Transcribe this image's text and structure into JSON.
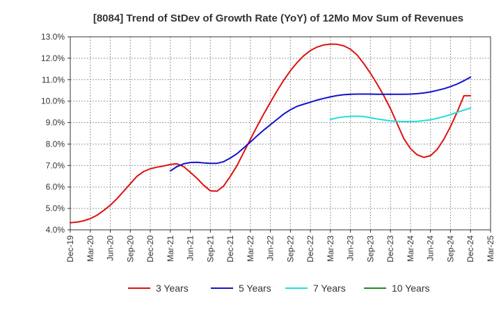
{
  "chart_data": {
    "type": "line",
    "title": "[8084]  Trend of StDev of Growth Rate (YoY) of 12Mo Mov Sum of Revenues",
    "xlabel": "",
    "ylabel": "",
    "ylim": [
      4.0,
      13.0
    ],
    "y_ticks": [
      "4.0%",
      "5.0%",
      "6.0%",
      "7.0%",
      "8.0%",
      "9.0%",
      "10.0%",
      "11.0%",
      "12.0%",
      "13.0%"
    ],
    "x_tick_labels": [
      "Dec-19",
      "Mar-20",
      "Jun-20",
      "Sep-20",
      "Dec-20",
      "Mar-21",
      "Jun-21",
      "Sep-21",
      "Dec-21",
      "Mar-22",
      "Jun-22",
      "Sep-22",
      "Dec-22",
      "Mar-23",
      "Jun-23",
      "Sep-23",
      "Dec-23",
      "Mar-24",
      "Jun-24",
      "Sep-24",
      "Dec-24",
      "Mar-25"
    ],
    "grid": true,
    "legend_position": "bottom",
    "series": [
      {
        "name": "3 Years",
        "color": "#dd1111",
        "x": [
          "Dec-19",
          "Jan-20",
          "Feb-20",
          "Mar-20",
          "Apr-20",
          "May-20",
          "Jun-20",
          "Jul-20",
          "Aug-20",
          "Sep-20",
          "Oct-20",
          "Nov-20",
          "Dec-20",
          "Jan-21",
          "Feb-21",
          "Mar-21",
          "Apr-21",
          "May-21",
          "Jun-21",
          "Jul-21",
          "Aug-21",
          "Sep-21",
          "Oct-21",
          "Nov-21",
          "Dec-21",
          "Jan-22",
          "Feb-22",
          "Mar-22",
          "Apr-22",
          "May-22",
          "Jun-22",
          "Jul-22",
          "Aug-22",
          "Sep-22",
          "Oct-22",
          "Nov-22",
          "Dec-22",
          "Jan-23",
          "Feb-23",
          "Mar-23",
          "Apr-23",
          "May-23",
          "Jun-23",
          "Jul-23",
          "Aug-23",
          "Sep-23",
          "Oct-23",
          "Nov-23",
          "Dec-23",
          "Jan-24",
          "Feb-24",
          "Mar-24",
          "Apr-24",
          "May-24",
          "Jun-24",
          "Jul-24",
          "Aug-24",
          "Sep-24",
          "Oct-24",
          "Nov-24",
          "Dec-24"
        ],
        "values": [
          4.33,
          4.36,
          4.42,
          4.52,
          4.68,
          4.9,
          5.15,
          5.45,
          5.8,
          6.15,
          6.5,
          6.72,
          6.85,
          6.92,
          6.98,
          7.05,
          7.08,
          6.95,
          6.68,
          6.4,
          6.08,
          5.82,
          5.8,
          6.05,
          6.5,
          7.0,
          7.62,
          8.22,
          8.82,
          9.4,
          9.95,
          10.48,
          10.98,
          11.42,
          11.8,
          12.12,
          12.36,
          12.52,
          12.62,
          12.66,
          12.65,
          12.58,
          12.42,
          12.15,
          11.75,
          11.3,
          10.8,
          10.25,
          9.65,
          8.95,
          8.25,
          7.78,
          7.5,
          7.38,
          7.46,
          7.75,
          8.22,
          8.82,
          9.5,
          10.25,
          10.25
        ]
      },
      {
        "name": "5 Years",
        "color": "#1111cc",
        "x": [
          "Mar-21",
          "Apr-21",
          "May-21",
          "Jun-21",
          "Jul-21",
          "Aug-21",
          "Sep-21",
          "Oct-21",
          "Nov-21",
          "Dec-21",
          "Jan-22",
          "Feb-22",
          "Mar-22",
          "Apr-22",
          "May-22",
          "Jun-22",
          "Jul-22",
          "Aug-22",
          "Sep-22",
          "Oct-22",
          "Nov-22",
          "Dec-22",
          "Jan-23",
          "Feb-23",
          "Mar-23",
          "Apr-23",
          "May-23",
          "Jun-23",
          "Jul-23",
          "Aug-23",
          "Sep-23",
          "Oct-23",
          "Nov-23",
          "Dec-23",
          "Jan-24",
          "Feb-24",
          "Mar-24",
          "Apr-24",
          "May-24",
          "Jun-24",
          "Jul-24",
          "Aug-24",
          "Sep-24",
          "Oct-24",
          "Nov-24",
          "Dec-24"
        ],
        "values": [
          6.75,
          6.95,
          7.08,
          7.14,
          7.15,
          7.12,
          7.1,
          7.1,
          7.18,
          7.35,
          7.55,
          7.82,
          8.1,
          8.38,
          8.65,
          8.9,
          9.15,
          9.4,
          9.6,
          9.76,
          9.86,
          9.95,
          10.05,
          10.13,
          10.2,
          10.26,
          10.3,
          10.32,
          10.33,
          10.33,
          10.33,
          10.32,
          10.32,
          10.32,
          10.32,
          10.32,
          10.33,
          10.35,
          10.38,
          10.43,
          10.5,
          10.58,
          10.68,
          10.8,
          10.95,
          11.12
        ]
      },
      {
        "name": "7 Years",
        "color": "#22dddd",
        "x": [
          "Mar-23",
          "Apr-23",
          "May-23",
          "Jun-23",
          "Jul-23",
          "Aug-23",
          "Sep-23",
          "Oct-23",
          "Nov-23",
          "Dec-23",
          "Jan-24",
          "Feb-24",
          "Mar-24",
          "Apr-24",
          "May-24",
          "Jun-24",
          "Jul-24",
          "Aug-24",
          "Sep-24",
          "Oct-24",
          "Nov-24",
          "Dec-24"
        ],
        "values": [
          9.15,
          9.22,
          9.27,
          9.29,
          9.3,
          9.28,
          9.23,
          9.17,
          9.12,
          9.08,
          9.06,
          9.05,
          9.05,
          9.06,
          9.09,
          9.13,
          9.2,
          9.28,
          9.37,
          9.48,
          9.58,
          9.68
        ]
      },
      {
        "name": "10 Years",
        "color": "#228822",
        "x": [],
        "values": []
      }
    ]
  }
}
